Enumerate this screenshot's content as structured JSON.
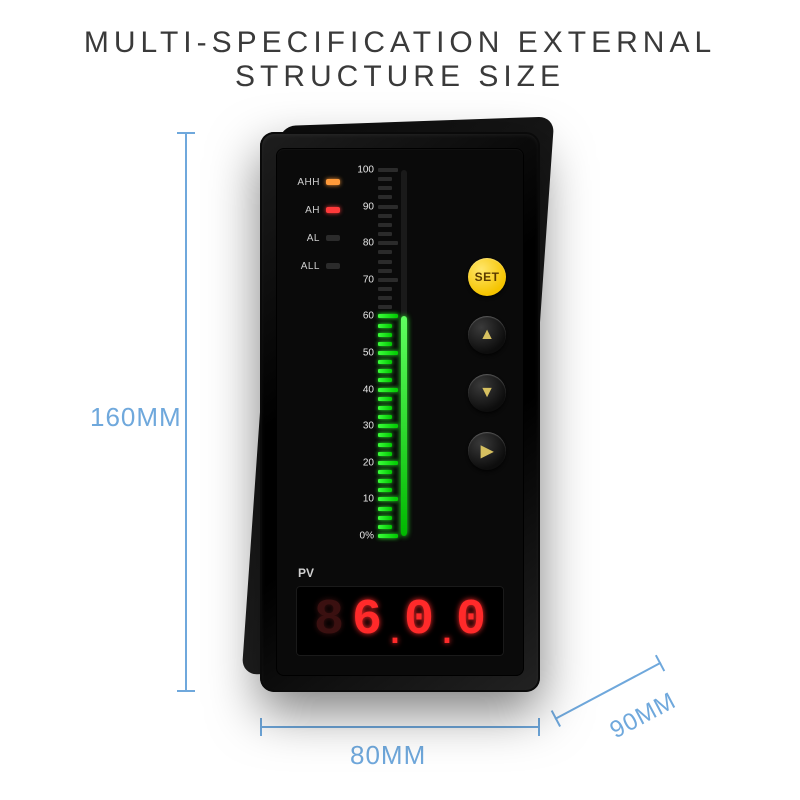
{
  "title_line1": "MULTI-SPECIFICATION EXTERNAL",
  "title_line2": "STRUCTURE SIZE",
  "dims": {
    "height": "160MM",
    "width": "80MM",
    "depth": "90MM"
  },
  "dim_color": "#6fa8dc",
  "device": {
    "body_color": "#0a0a0a",
    "alarms": [
      {
        "label": "AHH",
        "led_color": "#ff9a3a"
      },
      {
        "label": "AH",
        "led_color": "#ff3a3a"
      },
      {
        "label": "AL",
        "led_color": "#2b2b2b"
      },
      {
        "label": "ALL",
        "led_color": "#2b2b2b"
      }
    ],
    "scale": {
      "labels": [
        "100",
        "90",
        "80",
        "70",
        "60",
        "50",
        "40",
        "30",
        "20",
        "10",
        "0%"
      ],
      "tick_count": 40,
      "fill_percent": 60,
      "lit_color": "#2bff2b",
      "off_color": "#2b2b2b"
    },
    "buttons": {
      "set_label": "SET",
      "set_bg": "#f5c400",
      "arrow_bg": "#1a1a1a",
      "arrow_glyphs": [
        "▲",
        "▼",
        "▶"
      ]
    },
    "display": {
      "pvlabel": "PV",
      "ghost_digit": "8",
      "ghost_color": "#3a1010",
      "digits": [
        "6",
        "0",
        "0"
      ],
      "digit_color": "#ff2a2a",
      "first_dp_after": 0,
      "second_dp_after": 1
    }
  }
}
